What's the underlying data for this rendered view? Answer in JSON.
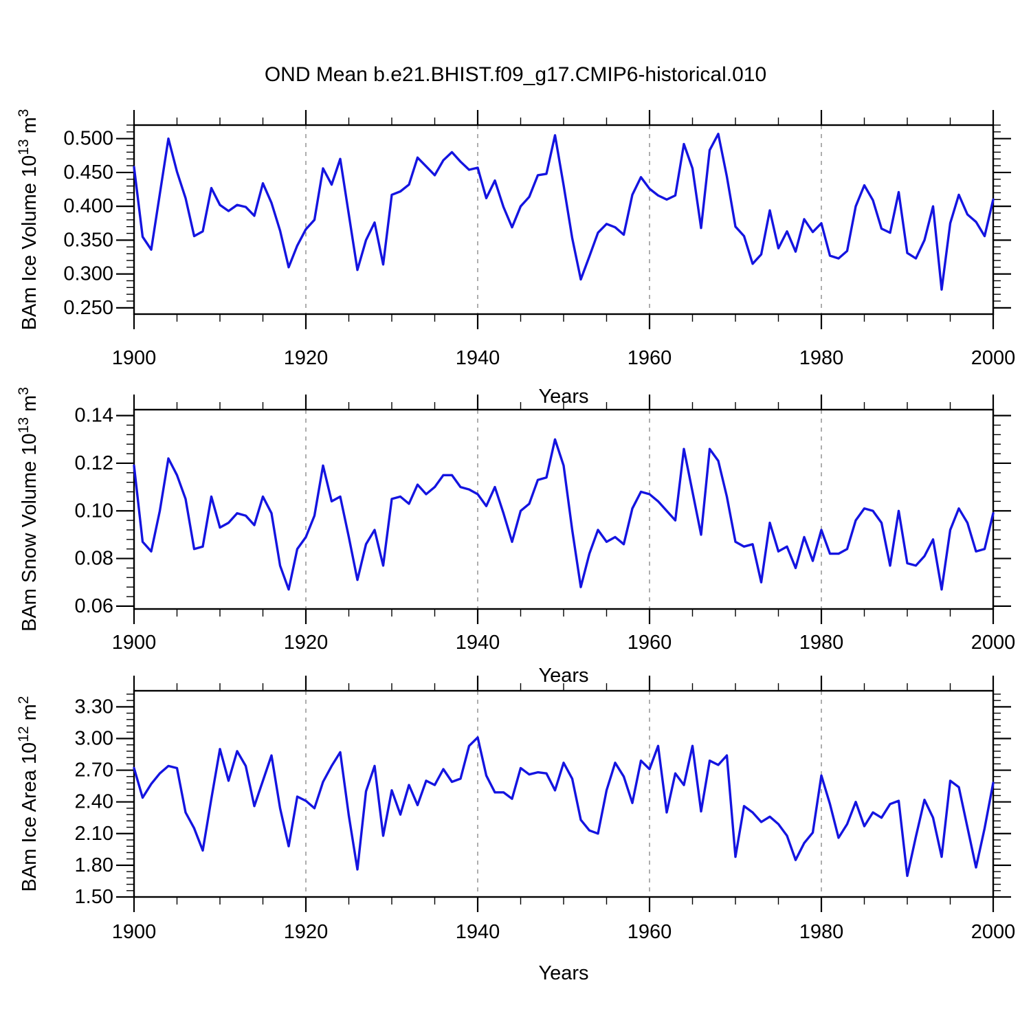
{
  "title": "OND Mean b.e21.BHIST.f09_g17.CMIP6-historical.010",
  "chart_data": {
    "type": "line",
    "title": "OND Mean b.e21.BHIST.f09_g17.CMIP6-historical.010",
    "x_label": "Years",
    "x_ticks": [
      "1900",
      "1920",
      "1940",
      "1960",
      "1980",
      "2000"
    ],
    "x_tick_values": [
      1900,
      1920,
      1940,
      1960,
      1980,
      2000
    ],
    "x_minor_step": 5,
    "xlim": [
      1900,
      2000
    ],
    "dashed_gridlines_x": [
      1920,
      1940,
      1960,
      1980
    ],
    "grid": "dashed-vertical",
    "legend": "none",
    "line_color": "#1414e0",
    "years": [
      1900,
      1901,
      1902,
      1903,
      1904,
      1905,
      1906,
      1907,
      1908,
      1909,
      1910,
      1911,
      1912,
      1913,
      1914,
      1915,
      1916,
      1917,
      1918,
      1919,
      1920,
      1921,
      1922,
      1923,
      1924,
      1925,
      1926,
      1927,
      1928,
      1929,
      1930,
      1931,
      1932,
      1933,
      1934,
      1935,
      1936,
      1937,
      1938,
      1939,
      1940,
      1941,
      1942,
      1943,
      1944,
      1945,
      1946,
      1947,
      1948,
      1949,
      1950,
      1951,
      1952,
      1953,
      1954,
      1955,
      1956,
      1957,
      1958,
      1959,
      1960,
      1961,
      1962,
      1963,
      1964,
      1965,
      1966,
      1967,
      1968,
      1969,
      1970,
      1971,
      1972,
      1973,
      1974,
      1975,
      1976,
      1977,
      1978,
      1979,
      1980,
      1981,
      1982,
      1983,
      1984,
      1985,
      1986,
      1987,
      1988,
      1989,
      1990,
      1991,
      1992,
      1993,
      1994,
      1995,
      1996,
      1997,
      1998,
      1999,
      2000
    ],
    "panels": [
      {
        "id": "ice-volume",
        "ylabel_prefix": "BAm Ice Volume 10",
        "ylabel_exp": "13",
        "ylabel_mid": " m",
        "ylabel_exp2": "3",
        "ytick_labels": [
          "0.250",
          "0.300",
          "0.350",
          "0.400",
          "0.450",
          "0.500"
        ],
        "yticks": [
          0.25,
          0.3,
          0.35,
          0.4,
          0.45,
          0.5
        ],
        "ylim": [
          0.2407,
          0.52
        ],
        "y_minor_step": 0.01,
        "values": [
          0.458,
          0.355,
          0.336,
          0.418,
          0.5,
          0.451,
          0.412,
          0.356,
          0.363,
          0.427,
          0.402,
          0.393,
          0.402,
          0.399,
          0.386,
          0.434,
          0.405,
          0.364,
          0.31,
          0.342,
          0.366,
          0.38,
          0.456,
          0.432,
          0.47,
          0.388,
          0.306,
          0.35,
          0.376,
          0.314,
          0.417,
          0.422,
          0.432,
          0.472,
          0.459,
          0.446,
          0.468,
          0.48,
          0.466,
          0.454,
          0.457,
          0.412,
          0.438,
          0.399,
          0.369,
          0.4,
          0.414,
          0.446,
          0.448,
          0.505,
          0.431,
          0.353,
          0.292,
          0.326,
          0.361,
          0.374,
          0.369,
          0.358,
          0.417,
          0.443,
          0.426,
          0.416,
          0.41,
          0.416,
          0.492,
          0.456,
          0.368,
          0.483,
          0.507,
          0.444,
          0.37,
          0.356,
          0.315,
          0.329,
          0.394,
          0.338,
          0.363,
          0.333,
          0.381,
          0.362,
          0.375,
          0.327,
          0.323,
          0.334,
          0.4,
          0.431,
          0.409,
          0.367,
          0.361,
          0.421,
          0.331,
          0.323,
          0.35,
          0.4,
          0.277,
          0.375,
          0.417,
          0.388,
          0.377,
          0.356,
          0.41
        ]
      },
      {
        "id": "snow-volume",
        "ylabel_prefix": "BAm Snow Volume 10",
        "ylabel_exp": "13",
        "ylabel_mid": " m",
        "ylabel_exp2": "3",
        "ytick_labels": [
          "0.06",
          "0.08",
          "0.10",
          "0.12",
          "0.14"
        ],
        "yticks": [
          0.06,
          0.08,
          0.1,
          0.12,
          0.14
        ],
        "ylim": [
          0.0588,
          0.1425
        ],
        "y_minor_step": 0.004,
        "values": [
          0.119,
          0.087,
          0.083,
          0.1,
          0.122,
          0.115,
          0.105,
          0.084,
          0.085,
          0.106,
          0.093,
          0.095,
          0.099,
          0.098,
          0.094,
          0.106,
          0.099,
          0.077,
          0.067,
          0.084,
          0.089,
          0.098,
          0.119,
          0.104,
          0.106,
          0.089,
          0.071,
          0.086,
          0.092,
          0.077,
          0.105,
          0.106,
          0.103,
          0.111,
          0.107,
          0.11,
          0.115,
          0.115,
          0.11,
          0.109,
          0.107,
          0.102,
          0.11,
          0.099,
          0.087,
          0.1,
          0.103,
          0.113,
          0.114,
          0.13,
          0.119,
          0.092,
          0.068,
          0.082,
          0.092,
          0.087,
          0.089,
          0.086,
          0.101,
          0.108,
          0.107,
          0.104,
          0.1,
          0.096,
          0.126,
          0.108,
          0.09,
          0.126,
          0.121,
          0.106,
          0.087,
          0.085,
          0.086,
          0.07,
          0.095,
          0.083,
          0.085,
          0.076,
          0.089,
          0.079,
          0.092,
          0.082,
          0.082,
          0.084,
          0.096,
          0.101,
          0.1,
          0.095,
          0.077,
          0.1,
          0.078,
          0.077,
          0.081,
          0.088,
          0.067,
          0.092,
          0.101,
          0.095,
          0.083,
          0.084,
          0.099
        ]
      },
      {
        "id": "ice-area",
        "ylabel_prefix": "BAm Ice Area 10",
        "ylabel_exp": "12",
        "ylabel_mid": " m",
        "ylabel_exp2": "2",
        "ytick_labels": [
          "1.50",
          "1.80",
          "2.10",
          "2.40",
          "2.70",
          "3.00",
          "3.30"
        ],
        "yticks": [
          1.5,
          1.8,
          2.1,
          2.4,
          2.7,
          3.0,
          3.3
        ],
        "ylim": [
          1.5,
          3.452
        ],
        "y_minor_step": 0.06,
        "values": [
          2.72,
          2.44,
          2.57,
          2.67,
          2.74,
          2.72,
          2.3,
          2.15,
          1.94,
          2.43,
          2.9,
          2.6,
          2.88,
          2.74,
          2.36,
          2.6,
          2.84,
          2.34,
          1.98,
          2.45,
          2.41,
          2.34,
          2.59,
          2.74,
          2.87,
          2.27,
          1.76,
          2.5,
          2.74,
          2.08,
          2.51,
          2.28,
          2.56,
          2.37,
          2.6,
          2.56,
          2.71,
          2.59,
          2.62,
          2.93,
          3.01,
          2.65,
          2.49,
          2.49,
          2.43,
          2.72,
          2.66,
          2.68,
          2.67,
          2.51,
          2.77,
          2.62,
          2.23,
          2.13,
          2.1,
          2.51,
          2.77,
          2.64,
          2.39,
          2.79,
          2.71,
          2.93,
          2.3,
          2.67,
          2.56,
          2.93,
          2.31,
          2.79,
          2.75,
          2.84,
          1.88,
          2.36,
          2.3,
          2.21,
          2.26,
          2.19,
          2.08,
          1.85,
          2.01,
          2.11,
          2.65,
          2.38,
          2.06,
          2.19,
          2.4,
          2.17,
          2.3,
          2.25,
          2.38,
          2.41,
          1.7,
          2.07,
          2.42,
          2.25,
          1.88,
          2.6,
          2.54,
          2.16,
          1.78,
          2.15,
          2.58
        ]
      }
    ]
  }
}
